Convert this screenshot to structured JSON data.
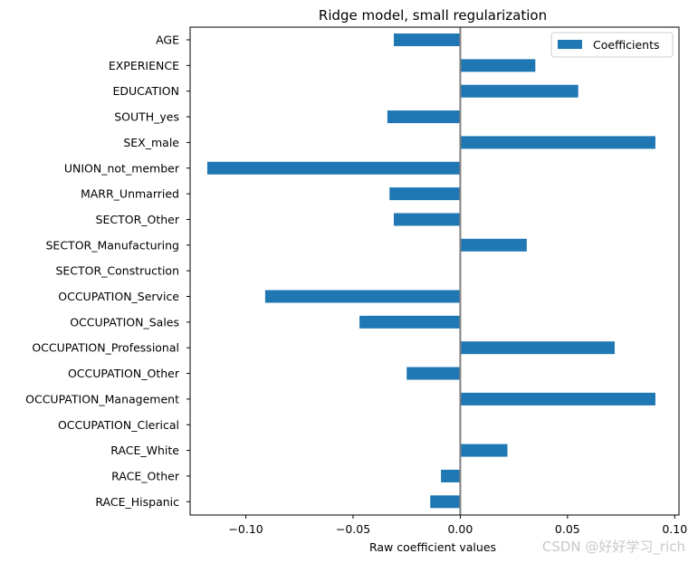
{
  "chart_data": {
    "type": "bar",
    "orientation": "horizontal",
    "title": "Ridge model, small regularization",
    "xlabel": "Raw coefficient values",
    "ylabel": "",
    "xlim": [
      -0.126,
      0.102
    ],
    "x_ticks": [
      -0.1,
      -0.05,
      0.0,
      0.05,
      0.1
    ],
    "x_tick_labels": [
      "−0.10",
      "−0.05",
      "0.00",
      "0.05",
      "0.10"
    ],
    "zero_line_color": "#808080",
    "bar_color": "#1f77b4",
    "legend": {
      "position": "top-right",
      "entries": [
        "Coefficients"
      ]
    },
    "grid": false,
    "categories": [
      "AGE",
      "EXPERIENCE",
      "EDUCATION",
      "SOUTH_yes",
      "SEX_male",
      "UNION_not_member",
      "MARR_Unmarried",
      "SECTOR_Other",
      "SECTOR_Manufacturing",
      "SECTOR_Construction",
      "OCCUPATION_Service",
      "OCCUPATION_Sales",
      "OCCUPATION_Professional",
      "OCCUPATION_Other",
      "OCCUPATION_Management",
      "OCCUPATION_Clerical",
      "RACE_White",
      "RACE_Other",
      "RACE_Hispanic"
    ],
    "series": [
      {
        "name": "Coefficients",
        "values": [
          -0.031,
          0.035,
          0.055,
          -0.034,
          0.091,
          -0.118,
          -0.033,
          -0.031,
          0.031,
          0.0,
          -0.091,
          -0.047,
          0.072,
          -0.025,
          0.091,
          0.0,
          0.022,
          -0.009,
          -0.014
        ]
      }
    ]
  },
  "watermark": "CSDN @好好学习_rich"
}
